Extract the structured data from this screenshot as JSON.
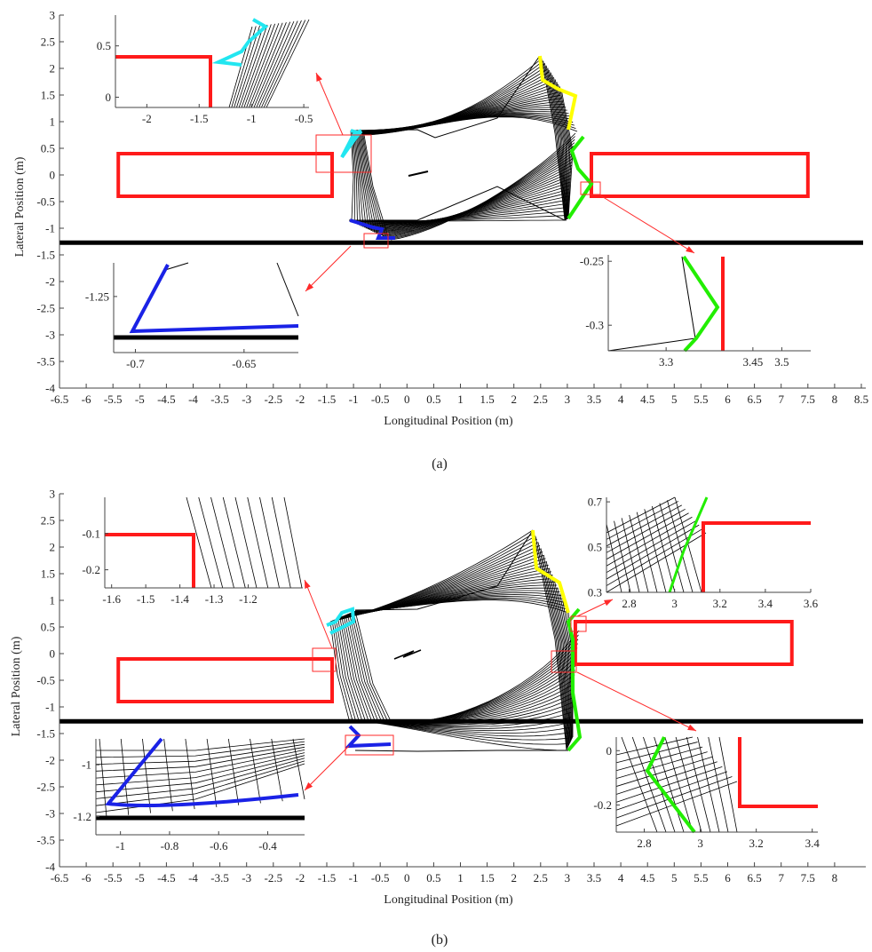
{
  "colors": {
    "obstacle": "#ff1a1a",
    "road_boundary": "#000000",
    "front_left": "#ffff00",
    "front_right": "#22ee00",
    "rear_left": "#22e6f0",
    "rear_right": "#1a22e6",
    "trajectory": "#000000",
    "zoom_box": "#ff2a2a"
  },
  "chart_data": [
    {
      "panel": "(a)",
      "type": "line",
      "xlabel": "Longitudinal Position (m)",
      "ylabel": "Lateral Position (m)",
      "xlim": [
        -6.5,
        8.5
      ],
      "ylim": [
        -4,
        3
      ],
      "xticks": [
        "-6.5",
        "-6",
        "-5.5",
        "-5",
        "-4.5",
        "-4",
        "-3.5",
        "-3",
        "-2.5",
        "-2",
        "-1.5",
        "-1",
        "-0.5",
        "0",
        "0.5",
        "1",
        "1.5",
        "2",
        "2.5",
        "3",
        "3.5",
        "4",
        "4.5",
        "5",
        "5.5",
        "6",
        "6.5",
        "7",
        "7.5",
        "8",
        "8.5"
      ],
      "yticks": [
        "3",
        "2.5",
        "2",
        "1.5",
        "1",
        "0.5",
        "0",
        "-0.5",
        "-1",
        "-1.5",
        "-2",
        "-2.5",
        "-3",
        "-3.5",
        "-4"
      ],
      "road_boundary_y": -1.27,
      "obstacles": [
        {
          "name": "rear obstacle",
          "x": [
            -5.4,
            -1.4
          ],
          "y": [
            -0.4,
            0.4
          ]
        },
        {
          "name": "front obstacle",
          "x": [
            3.45,
            7.5
          ],
          "y": [
            -0.4,
            0.4
          ]
        }
      ],
      "vehicle_start": {
        "x1": [
          -1.05,
          3.05
        ],
        "y_top": 0.82,
        "y_bottom": -0.88
      },
      "vehicle_end": {
        "corners": [
          [
            -1.0,
            0.9
          ],
          [
            2.45,
            2.2
          ],
          [
            3.3,
            0.7
          ],
          [
            -0.3,
            -1.2
          ]
        ]
      },
      "insets": [
        {
          "id": "top-left",
          "xlim": [
            -2.3,
            -0.45
          ],
          "ylim": [
            -0.1,
            0.8
          ],
          "xticks": [
            "-2",
            "-1.5",
            "-1",
            "-0.5"
          ],
          "yticks": [
            "0.5",
            "0"
          ]
        },
        {
          "id": "bottom-left",
          "xlim": [
            -0.71,
            -0.625
          ],
          "ylim": [
            -1.3,
            -1.22
          ],
          "xticks": [
            "-0.7",
            "-0.65"
          ],
          "yticks": [
            "-1.25"
          ]
        },
        {
          "id": "bottom-right",
          "xlim": [
            3.2,
            3.55
          ],
          "ylim": [
            -0.32,
            -0.245
          ],
          "xticks": [
            "3.3",
            "3.45",
            "3.5"
          ],
          "yticks": [
            "-0.25",
            "-0.3"
          ]
        }
      ]
    },
    {
      "panel": "(b)",
      "type": "line",
      "xlabel": "Longitudinal Position (m)",
      "ylabel": "Lateral Position (m)",
      "xlim": [
        -6.5,
        8.5
      ],
      "ylim": [
        -4,
        3
      ],
      "xticks": [
        "-6.5",
        "-6",
        "-5.5",
        "-5",
        "-4.5",
        "-4",
        "-3.5",
        "-3",
        "-2.5",
        "-2",
        "-1.5",
        "-1",
        "-0.5",
        "0",
        "0.5",
        "1",
        "1.5",
        "2",
        "2.5",
        "3",
        "3.5",
        "4",
        "4.5",
        "5",
        "5.5",
        "6",
        "6.5",
        "7",
        "7.5",
        "8"
      ],
      "yticks": [
        "3",
        "2.5",
        "2",
        "1.5",
        "1",
        "0.5",
        "0",
        "-0.5",
        "-1",
        "-1.5",
        "-2",
        "-2.5",
        "-3",
        "-3.5",
        "-4"
      ],
      "road_boundary_y": -1.27,
      "obstacles": [
        {
          "name": "rear obstacle",
          "x": [
            -5.4,
            -1.4
          ],
          "y": [
            -0.9,
            -0.1
          ]
        },
        {
          "name": "front obstacle",
          "x": [
            3.15,
            7.2
          ],
          "y": [
            -0.2,
            0.6
          ]
        }
      ],
      "insets": [
        {
          "id": "top-left",
          "xlim": [
            -1.62,
            -1.04
          ],
          "ylim": [
            -0.25,
            0.0
          ],
          "xticks": [
            "-1.6",
            "-1.5",
            "-1.4",
            "-1.3",
            "-1.2"
          ],
          "yticks": [
            "-0.1",
            "-0.2"
          ]
        },
        {
          "id": "top-right",
          "xlim": [
            2.7,
            3.6
          ],
          "ylim": [
            0.3,
            0.72
          ],
          "xticks": [
            "2.8",
            "3",
            "3.2",
            "3.4",
            "3.6"
          ],
          "yticks": [
            "0.7",
            "0.5",
            "0.3"
          ]
        },
        {
          "id": "bottom-left",
          "xlim": [
            -1.1,
            -0.25
          ],
          "ylim": [
            -1.27,
            -0.9
          ],
          "xticks": [
            "-1",
            "-0.8",
            "-0.6",
            "-0.4"
          ],
          "yticks": [
            "-1",
            "-1.2"
          ]
        },
        {
          "id": "bottom-right",
          "xlim": [
            2.7,
            3.42
          ],
          "ylim": [
            -0.3,
            0.05
          ],
          "xticks": [
            "2.8",
            "3",
            "3.2",
            "3.4"
          ],
          "yticks": [
            "0",
            "-0.2"
          ]
        }
      ]
    }
  ],
  "captions": {
    "a": "(a)",
    "b": "(b)"
  }
}
